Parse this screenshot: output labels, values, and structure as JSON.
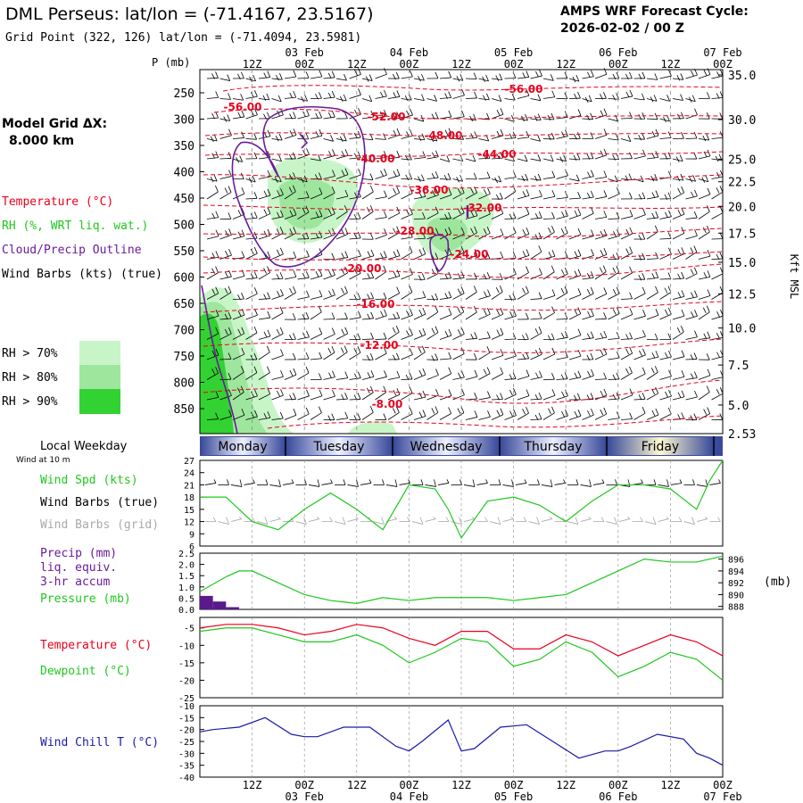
{
  "header": {
    "title": "DML Perseus:  lat/lon = (-71.4167, 23.5167)",
    "grid_point": "Grid Point (322, 126) lat/lon = (-71.4094, 23.5981)",
    "cycle_label": "AMPS WRF Forecast Cycle:",
    "cycle_value": "2026-02-02 / 00  Z"
  },
  "left_panel": {
    "model_grid_label": "Model Grid ΔX:",
    "model_grid_value": "8.000 km",
    "legend_temperature": "Temperature (°C)",
    "legend_rh": "RH (%, WRT liq. wat.)",
    "legend_cloud": "Cloud/Precip Outline",
    "legend_wind": "Wind Barbs (kts) (true)",
    "rh_70": "RH > 70%",
    "rh_80": "RH > 80%",
    "rh_90": "RH > 90%",
    "local_weekday": "Local Weekday",
    "wind_at_10m": "Wind at 10 m",
    "wind_spd": "Wind Spd (kts)",
    "wind_barbs_true": "Wind Barbs (true)",
    "wind_barbs_grid": "Wind Barbs (grid)",
    "precip_label": "Precip (mm)",
    "precip_liq": "liq. equiv.",
    "precip_accum": "3-hr accum",
    "pressure_label": "Pressure (mb)",
    "temperature_label": "Temperature (°C)",
    "dewpoint_label": "Dewpoint (°C)",
    "windchill_label": "Wind Chill T (°C)"
  },
  "colors": {
    "temperature": "#e8001c",
    "rh_green": "#1ec81e",
    "rh70": "#c8f5c8",
    "rh80": "#9ee69e",
    "rh90": "#32d232",
    "cloud": "#6a1b9a",
    "precip_bar": "#5b1a8c",
    "windchill": "#1a1aa8",
    "grid_barbs": "#aaaaaa"
  },
  "chart_data": [
    {
      "name": "vertical_section",
      "type": "contour",
      "x_axis": {
        "top_time_labels": [
          "12Z",
          "00Z",
          "12Z",
          "00Z",
          "12Z",
          "00Z",
          "12Z",
          "00Z",
          "12Z",
          "00Z"
        ],
        "date_labels": [
          "03 Feb",
          "04 Feb",
          "05 Feb",
          "06 Feb",
          "07 Feb"
        ],
        "range_hours": [
          0,
          120
        ]
      },
      "pressure_label": "P (mb)",
      "pressure_ticks": [
        "250",
        "300",
        "350",
        "400",
        "450",
        "500",
        "550",
        "600",
        "650",
        "700",
        "750",
        "800",
        "850"
      ],
      "height_label": "Kft MSL",
      "height_ticks": [
        "35.0",
        "30.0",
        "25.0",
        "22.5",
        "20.0",
        "17.5",
        "15.0",
        "12.5",
        "10.0",
        "7.5",
        "5.0",
        "2.53"
      ],
      "temperature_contour_labels": [
        "-56.00",
        "-56.00",
        "-52.00",
        "-48.00",
        "-44.00",
        "-40.00",
        "-36.00",
        "-32.00",
        "-28.00",
        "-24.00",
        "-20.00",
        "-16.00",
        "-12.00",
        "-8.00"
      ]
    },
    {
      "name": "weekday_bar",
      "type": "table",
      "days": [
        "Monday",
        "Tuesday",
        "Wednesday",
        "Thursday",
        "Friday"
      ]
    },
    {
      "name": "wind_speed",
      "type": "line",
      "y_ticks": [
        "27",
        "24",
        "21",
        "18",
        "15",
        "12",
        "9",
        "6"
      ],
      "ylim": [
        6,
        27
      ],
      "series": [
        {
          "name": "Wind Spd (kts)",
          "x": [
            0,
            6,
            12,
            18,
            24,
            30,
            36,
            42,
            48,
            54,
            57,
            60,
            66,
            72,
            78,
            84,
            90,
            96,
            102,
            108,
            114,
            117,
            120
          ],
          "values": [
            18,
            18,
            12,
            10,
            15,
            19,
            15,
            10,
            21,
            20,
            15,
            8,
            17,
            18,
            16,
            12,
            17,
            21,
            21,
            20,
            15,
            22,
            27
          ]
        }
      ]
    },
    {
      "name": "precip_pressure",
      "type": "bar",
      "precip_ticks": [
        "2.5",
        "2.0",
        "1.5",
        "1.0",
        "0.5",
        "0.0"
      ],
      "pressure_ticks": [
        "896",
        "894",
        "892",
        "890",
        "888"
      ],
      "pressure_unit": "(mb)",
      "precip": {
        "x": [
          1.5,
          4.5,
          7.5
        ],
        "values": [
          0.6,
          0.35,
          0.1
        ]
      },
      "pressure": {
        "x": [
          0,
          6,
          9,
          12,
          18,
          24,
          30,
          36,
          42,
          48,
          54,
          60,
          66,
          72,
          78,
          84,
          90,
          96,
          102,
          108,
          114,
          120
        ],
        "values": [
          890.5,
          893,
          894,
          894,
          892,
          890,
          889,
          888.5,
          889.5,
          889,
          889.5,
          889.5,
          889.5,
          889,
          889.5,
          890,
          892,
          894,
          896,
          895.5,
          895.5,
          896.5
        ]
      }
    },
    {
      "name": "temperature_dewpoint",
      "type": "line",
      "y_ticks": [
        "-5",
        "-10",
        "-15",
        "-20",
        "-25"
      ],
      "ylim": [
        -25,
        -2
      ],
      "series": [
        {
          "name": "Temperature",
          "x": [
            0,
            6,
            12,
            18,
            24,
            30,
            36,
            42,
            48,
            54,
            60,
            66,
            72,
            78,
            84,
            90,
            96,
            102,
            108,
            114,
            120
          ],
          "values": [
            -5,
            -4,
            -4,
            -5,
            -7,
            -6,
            -4,
            -5,
            -8,
            -10,
            -6,
            -6,
            -11,
            -11,
            -7,
            -9,
            -13,
            -10,
            -7,
            -9,
            -13
          ]
        },
        {
          "name": "Dewpoint",
          "x": [
            0,
            6,
            12,
            18,
            24,
            30,
            36,
            42,
            48,
            54,
            60,
            66,
            72,
            78,
            84,
            90,
            96,
            102,
            108,
            114,
            120
          ],
          "values": [
            -6,
            -5,
            -5,
            -7,
            -9,
            -9,
            -7,
            -10,
            -15,
            -12,
            -8,
            -9,
            -16,
            -14,
            -9,
            -12,
            -19,
            -16,
            -12,
            -14,
            -20
          ]
        }
      ]
    },
    {
      "name": "wind_chill",
      "type": "line",
      "y_ticks": [
        "-10",
        "-15",
        "-20",
        "-25",
        "-30",
        "-35",
        "-40"
      ],
      "ylim": [
        -40,
        -10
      ],
      "series": [
        {
          "name": "Wind Chill T",
          "x": [
            0,
            3,
            9,
            15,
            21,
            24,
            27,
            33,
            39,
            45,
            48,
            51,
            57,
            60,
            63,
            69,
            75,
            81,
            87,
            93,
            96,
            99,
            105,
            111,
            114,
            117,
            120
          ],
          "values": [
            -21,
            -20,
            -19,
            -15,
            -22,
            -23,
            -23,
            -19,
            -19,
            -27,
            -29,
            -25,
            -16,
            -29,
            -28,
            -19,
            -18,
            -25,
            -32,
            -29,
            -29,
            -27,
            -22,
            -24,
            -30,
            -32,
            -35
          ]
        }
      ]
    }
  ]
}
